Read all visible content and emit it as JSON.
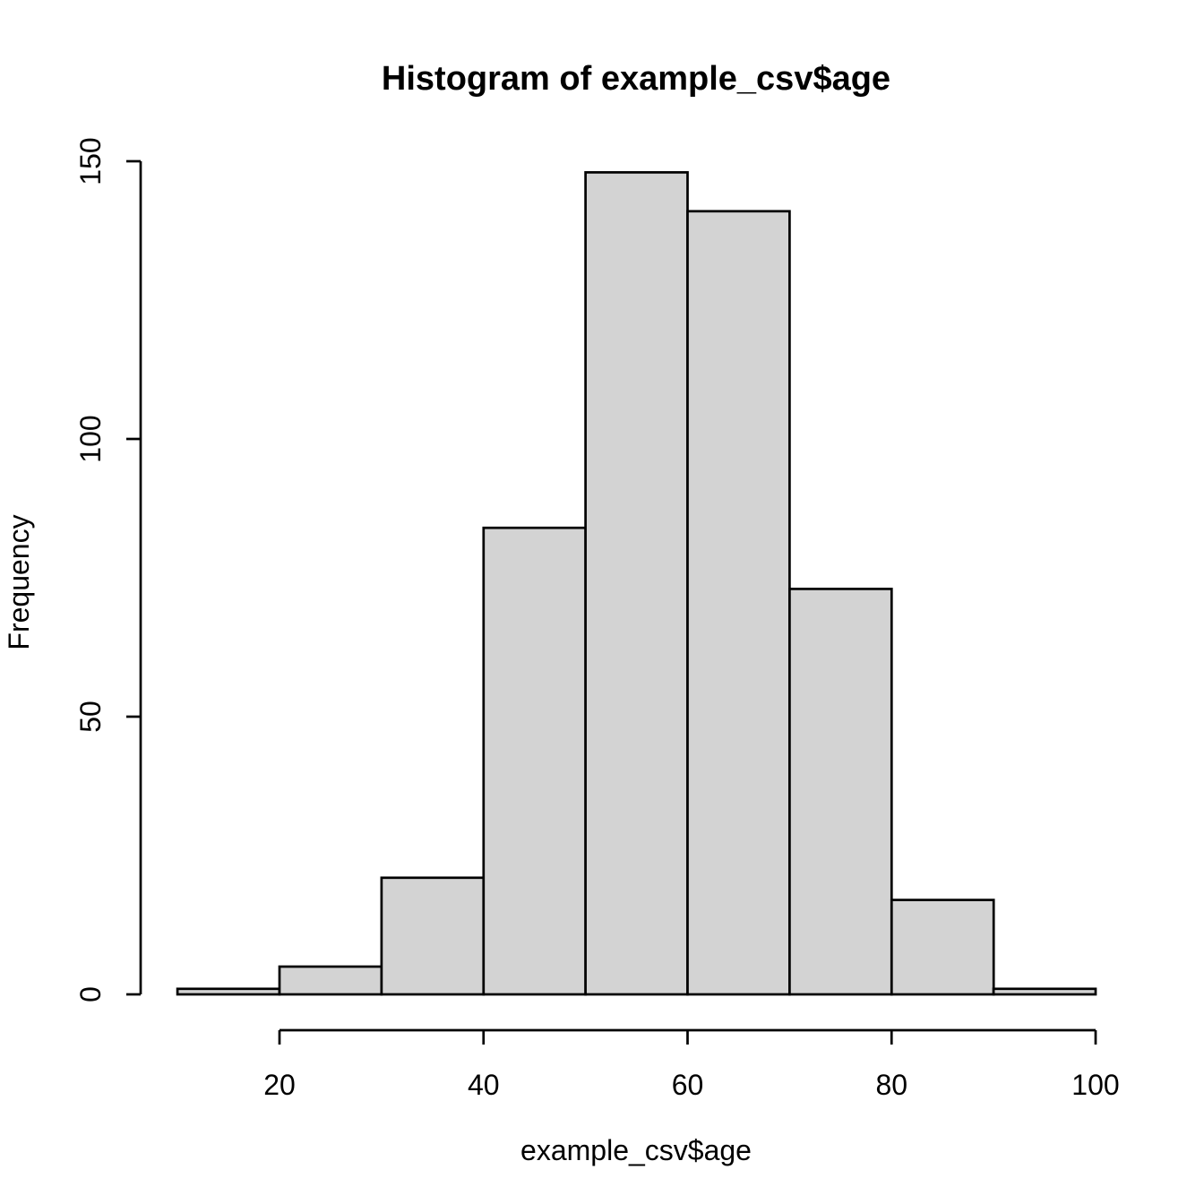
{
  "chart_data": {
    "type": "bar",
    "subtype": "histogram",
    "title": "Histogram of example_csv$age",
    "xlabel": "example_csv$age",
    "ylabel": "Frequency",
    "bin_breaks": [
      10,
      20,
      30,
      40,
      50,
      60,
      70,
      80,
      90,
      100
    ],
    "counts": [
      1,
      5,
      21,
      84,
      148,
      141,
      73,
      17,
      1
    ],
    "x_ticks": [
      20,
      40,
      60,
      80,
      100
    ],
    "y_ticks": [
      0,
      50,
      100,
      150
    ],
    "xlim": [
      10,
      100
    ],
    "ylim": [
      0,
      150
    ],
    "grid": false,
    "legend": "none",
    "colors": {
      "bar_fill": "#D3D3D3",
      "bar_border": "#000000",
      "axis": "#000000",
      "text": "#000000",
      "background": "#FFFFFF"
    }
  }
}
